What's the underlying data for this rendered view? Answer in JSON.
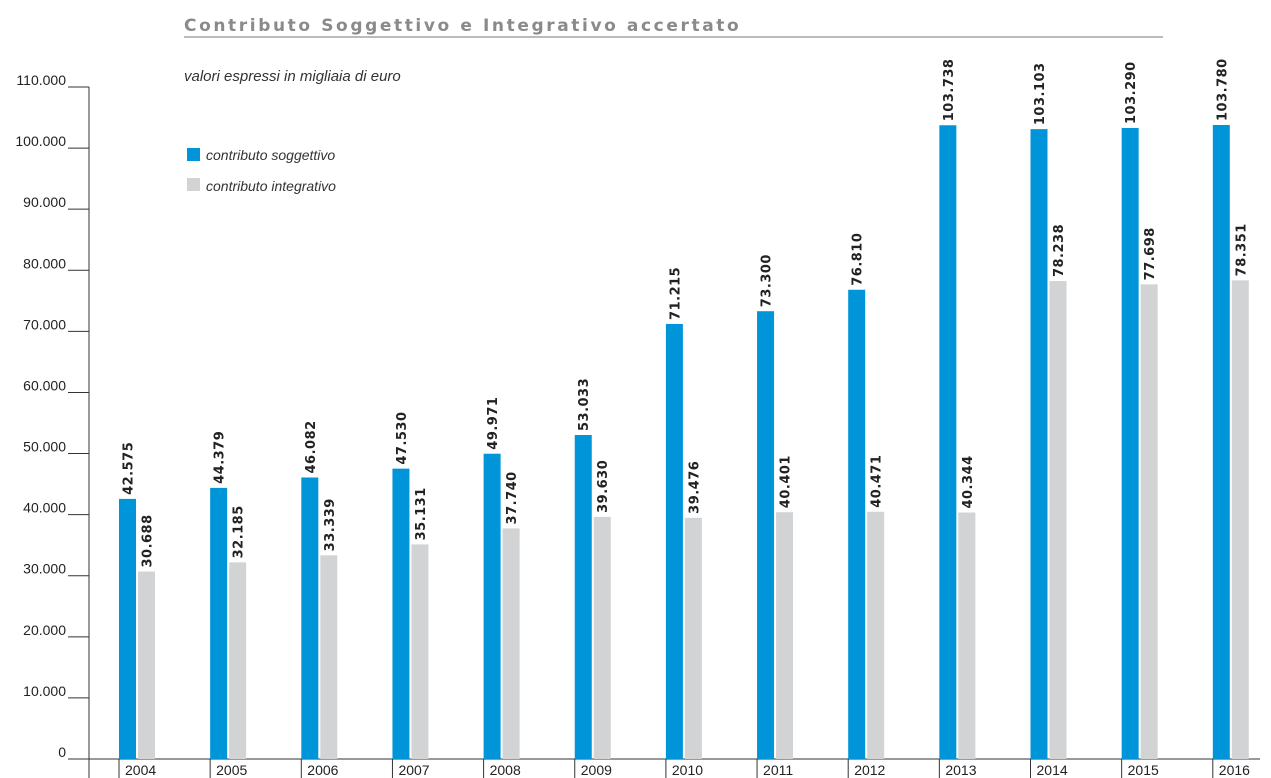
{
  "chart_data": {
    "type": "bar",
    "title": "Contributo Soggettivo e Integrativo accertato",
    "subtitle": "valori espressi in migliaia di euro",
    "categories": [
      "2004",
      "2005",
      "2006",
      "2007",
      "2008",
      "2009",
      "2010",
      "2011",
      "2012",
      "2013",
      "2014",
      "2015",
      "2016"
    ],
    "series": [
      {
        "name": "contributo soggettivo",
        "color": "#0095d9",
        "values": [
          42575,
          44379,
          46082,
          47530,
          49971,
          53033,
          71215,
          73300,
          76810,
          103738,
          103103,
          103290,
          103780
        ],
        "labels": [
          "42.575",
          "44.379",
          "46.082",
          "47.530",
          "49.971",
          "53.033",
          "71.215",
          "73.300",
          "76.810",
          "103.738",
          "103.103",
          "103.290",
          "103.780"
        ]
      },
      {
        "name": "contributo integrativo",
        "color": "#d1d3d4",
        "values": [
          30688,
          32185,
          33339,
          35131,
          37740,
          39630,
          39476,
          40401,
          40471,
          40344,
          78238,
          77698,
          78351
        ],
        "labels": [
          "30.688",
          "32.185",
          "33.339",
          "35.131",
          "37.740",
          "39.630",
          "39.476",
          "40.401",
          "40.471",
          "40.344",
          "78.238",
          "77.698",
          "78.351"
        ]
      }
    ],
    "ylim": [
      0,
      110000
    ],
    "yticks": [
      0,
      10000,
      20000,
      30000,
      40000,
      50000,
      60000,
      70000,
      80000,
      90000,
      100000,
      110000
    ],
    "ytick_labels": [
      "0",
      "10.000",
      "20.000",
      "30.000",
      "40.000",
      "50.000",
      "60.000",
      "70.000",
      "80.000",
      "90.000",
      "100.000",
      "110.000"
    ],
    "legend_position": "top-left",
    "grid": false
  }
}
